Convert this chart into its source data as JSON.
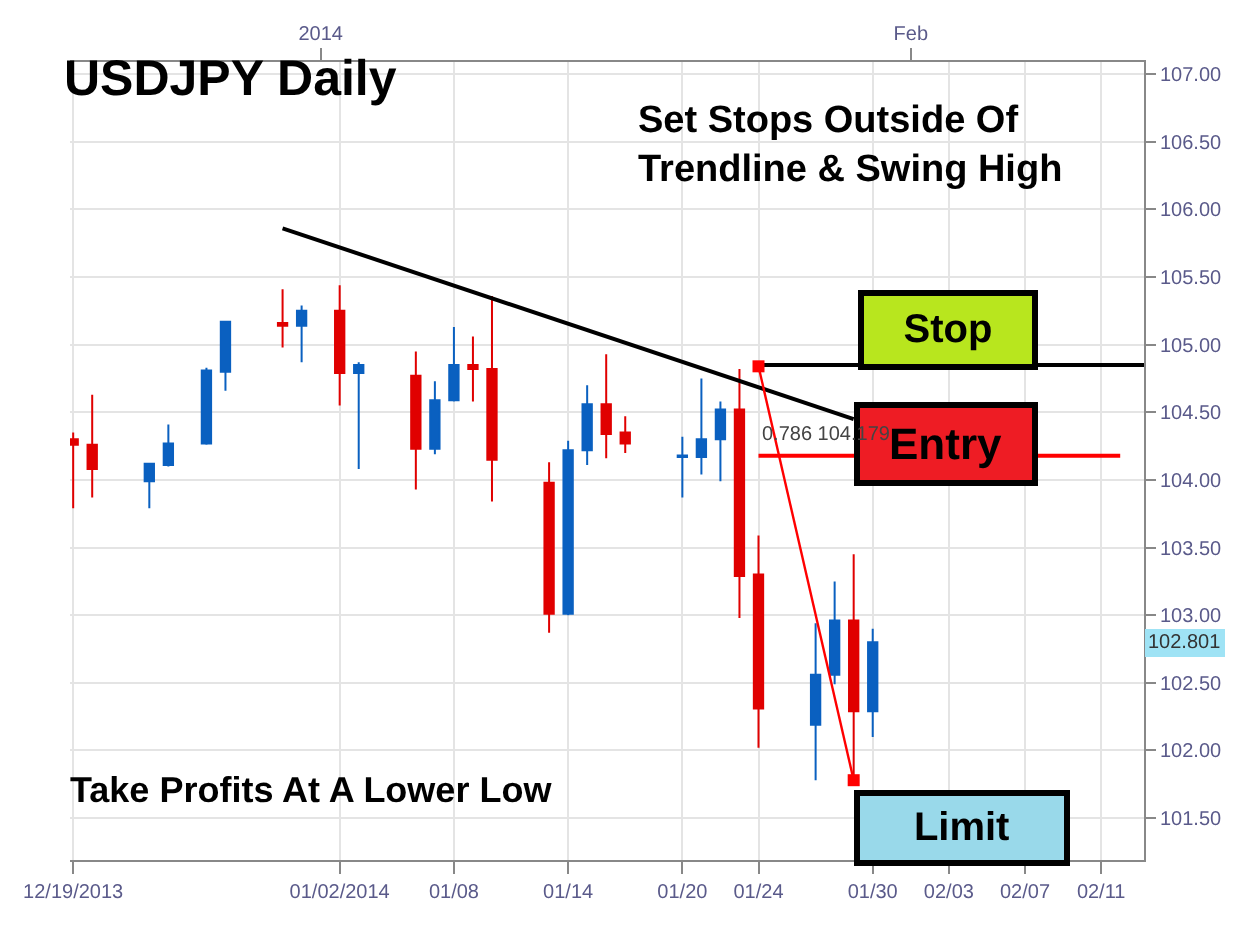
{
  "chart_data": {
    "type": "candlestick",
    "title": "USDJPY Daily",
    "x": [
      "2013-12-19",
      "2013-12-20",
      "2013-12-23",
      "2013-12-24",
      "2013-12-26",
      "2013-12-27",
      "2013-12-30",
      "2013-12-31",
      "2014-01-02",
      "2014-01-03",
      "2014-01-06",
      "2014-01-07",
      "2014-01-08",
      "2014-01-09",
      "2014-01-10",
      "2014-01-13",
      "2014-01-14",
      "2014-01-15",
      "2014-01-16",
      "2014-01-17",
      "2014-01-20",
      "2014-01-21",
      "2014-01-22",
      "2014-01-23",
      "2014-01-24",
      "2014-01-27",
      "2014-01-28",
      "2014-01-29",
      "2014-01-30"
    ],
    "ohlc": [
      [
        104.3,
        104.35,
        103.79,
        104.26
      ],
      [
        104.26,
        104.63,
        103.87,
        104.08
      ],
      [
        103.99,
        104.12,
        103.79,
        104.12
      ],
      [
        104.11,
        104.41,
        104.1,
        104.27
      ],
      [
        104.27,
        104.83,
        104.26,
        104.81
      ],
      [
        104.8,
        105.17,
        104.66,
        105.17
      ],
      [
        105.16,
        105.41,
        104.98,
        105.14
      ],
      [
        105.14,
        105.29,
        104.87,
        105.25
      ],
      [
        105.25,
        105.44,
        104.55,
        104.79
      ],
      [
        104.79,
        104.87,
        104.08,
        104.85
      ],
      [
        104.77,
        104.95,
        103.93,
        104.23
      ],
      [
        104.23,
        104.73,
        104.19,
        104.59
      ],
      [
        104.59,
        105.13,
        104.58,
        104.85
      ],
      [
        104.85,
        105.06,
        104.58,
        104.82
      ],
      [
        104.82,
        105.36,
        103.84,
        104.15
      ],
      [
        103.98,
        104.13,
        102.87,
        103.01
      ],
      [
        103.01,
        104.29,
        103.0,
        104.22
      ],
      [
        104.22,
        104.7,
        104.11,
        104.56
      ],
      [
        104.56,
        104.93,
        104.16,
        104.34
      ],
      [
        104.35,
        104.47,
        104.2,
        104.27
      ],
      [
        104.17,
        104.32,
        103.87,
        104.18
      ],
      [
        104.17,
        104.75,
        104.04,
        104.3
      ],
      [
        104.3,
        104.58,
        103.99,
        104.52
      ],
      [
        104.52,
        104.82,
        102.98,
        103.29
      ],
      [
        103.3,
        103.59,
        102.02,
        102.31
      ],
      [
        102.19,
        102.94,
        101.78,
        102.56
      ],
      [
        102.56,
        103.25,
        102.49,
        102.96
      ],
      [
        102.96,
        103.45,
        101.81,
        102.29
      ],
      [
        102.29,
        102.9,
        102.1,
        102.8
      ]
    ],
    "series": [
      {
        "type": "line",
        "color": "#000000",
        "marker": "none",
        "x": [
          "2013-12-30",
          "2014-01-29"
        ],
        "values": [
          105.86,
          104.45
        ]
      },
      {
        "type": "line",
        "color": "#000000",
        "marker": "none",
        "x": [
          "2014-01-24",
          "2014-02-13T06:00"
        ],
        "values": [
          104.85,
          104.85
        ]
      },
      {
        "type": "line",
        "color": "#ff0000",
        "marker": "none",
        "x": [
          "2014-01-24",
          "2014-02-12"
        ],
        "values": [
          104.179,
          104.179
        ]
      },
      {
        "type": "line",
        "color": "#ff0000",
        "marker": "square",
        "x": [
          "2014-01-24",
          "2014-01-29"
        ],
        "values": [
          104.84,
          101.78
        ]
      }
    ],
    "annotations": [
      "Set Stops Outside Of\nTrendline & Swing High",
      "Take Profits At A Lower Low",
      "Stop",
      "Entry",
      "Limit",
      {
        "text": "0.786 104.179",
        "x": "2014-01-24",
        "y": 104.179
      },
      {
        "text": "102.801",
        "y": 102.801
      }
    ],
    "xlim": [
      "2013-12-18T20:00",
      "2014-02-13T06:00"
    ],
    "xticks": [
      {
        "value": "2013-12-19",
        "label": "12/19/2013"
      },
      {
        "value": "2014-01-02",
        "label": "01/02/2014"
      },
      {
        "value": "2014-01-08",
        "label": "01/08"
      },
      {
        "value": "2014-01-14",
        "label": "01/14"
      },
      {
        "value": "2014-01-20",
        "label": "01/20"
      },
      {
        "value": "2014-01-24",
        "label": "01/24"
      },
      {
        "value": "2014-01-30",
        "label": "01/30"
      },
      {
        "value": "2014-02-03",
        "label": "02/03"
      },
      {
        "value": "2014-02-07",
        "label": "02/07"
      },
      {
        "value": "2014-02-11",
        "label": "02/11"
      }
    ],
    "x2lim": [
      "2013-12-18T20:00",
      "2014-02-13T06:00"
    ],
    "x2ticks": [
      {
        "value": "2014-01-01",
        "label": "2014"
      },
      {
        "value": "2014-02-01",
        "label": "Feb"
      }
    ],
    "ylim": [
      101.19,
      107.09
    ],
    "yticks": [
      {
        "value": 101.5,
        "label": "101.50"
      },
      {
        "value": 102,
        "label": "102.00"
      },
      {
        "value": 102.5,
        "label": "102.50"
      },
      {
        "value": 103,
        "label": "103.00"
      },
      {
        "value": 103.5,
        "label": "103.50"
      },
      {
        "value": 104,
        "label": "104.00"
      },
      {
        "value": 104.5,
        "label": "104.50"
      },
      {
        "value": 105,
        "label": "105.00"
      },
      {
        "value": 105.5,
        "label": "105.50"
      },
      {
        "value": 106,
        "label": "106.00"
      },
      {
        "value": 106.5,
        "label": "106.50"
      },
      {
        "value": 107,
        "label": "107.00"
      }
    ],
    "grid": true
  }
}
